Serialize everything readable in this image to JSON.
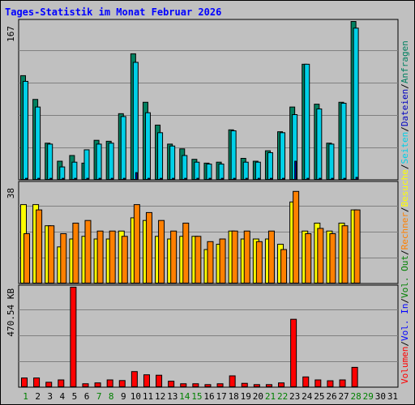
{
  "chart_data": {
    "type": "bar",
    "title": "Tages-Statistik im Monat Februar 2026",
    "days": [
      "1",
      "2",
      "3",
      "4",
      "5",
      "6",
      "7",
      "8",
      "9",
      "10",
      "11",
      "12",
      "13",
      "14",
      "15",
      "16",
      "17",
      "18",
      "19",
      "20",
      "21",
      "22",
      "23",
      "24",
      "25",
      "26",
      "27",
      "28",
      "29",
      "30",
      "31"
    ],
    "weekend_days": [
      "1",
      "7",
      "8",
      "14",
      "15",
      "21",
      "22",
      "28",
      "29"
    ],
    "panels": [
      {
        "id": "top",
        "ytick": "167",
        "ymax": 167,
        "series": [
          {
            "name": "Anfragen",
            "color": "#008060",
            "values": [
              110,
              85,
              39,
              20,
              26,
              18,
              42,
              41,
              70,
              133,
              82,
              58,
              38,
              33,
              22,
              18,
              19,
              53,
              23,
              20,
              31,
              51,
              77,
              122,
              80,
              39,
              82,
              167,
              null,
              null,
              null
            ]
          },
          {
            "name": "Seiten",
            "color": "#00D0E8",
            "values": [
              104,
              77,
              38,
              14,
              19,
              32,
              38,
              39,
              67,
              124,
              71,
              50,
              36,
              26,
              19,
              17,
              17,
              52,
              19,
              19,
              29,
              50,
              69,
              122,
              75,
              38,
              81,
              160,
              null,
              null,
              null
            ]
          },
          {
            "name": "Dateien",
            "color": "#0000C0",
            "values": [
              2,
              2,
              2,
              2,
              2,
              2,
              2,
              2,
              2,
              8,
              2,
              2,
              2,
              2,
              2,
              2,
              2,
              2,
              2,
              2,
              2,
              2,
              20,
              2,
              2,
              2,
              2,
              3,
              null,
              null,
              null
            ]
          }
        ]
      },
      {
        "id": "middle",
        "ytick": "38",
        "ymax": 38,
        "series": [
          {
            "name": "Besuche",
            "color": "#FFFF00",
            "values": [
              30,
              30,
              22,
              14,
              17,
              18,
              17,
              17,
              20,
              25,
              24,
              18,
              17,
              18,
              18,
              13,
              15,
              20,
              17,
              17,
              17,
              15,
              31,
              20,
              23,
              20,
              23,
              28,
              null,
              null,
              null
            ]
          },
          {
            "name": "Rechner",
            "color": "#FF8000",
            "values": [
              19,
              28,
              22,
              19,
              23,
              24,
              20,
              20,
              18,
              30,
              27,
              24,
              20,
              23,
              18,
              16,
              17,
              20,
              20,
              16,
              20,
              13,
              35,
              19,
              21,
              19,
              22,
              28,
              null,
              null,
              null
            ]
          }
        ]
      },
      {
        "id": "bottom",
        "ytick": "470.54 KB",
        "ymax": 470.54,
        "series": [
          {
            "name": "Vol. In",
            "color": "#0000FF",
            "values": []
          },
          {
            "name": "Vol. Out",
            "color": "#008000",
            "values": []
          },
          {
            "name": "Volumen",
            "color": "#FF0000",
            "values": [
              45,
              45,
              25,
              36,
              470.54,
              18,
              22,
              36,
              33,
              75,
              60,
              58,
              30,
              18,
              18,
              14,
              18,
              55,
              20,
              14,
              14,
              22,
              320,
              50,
              36,
              32,
              36,
              95,
              null,
              null,
              null
            ]
          }
        ]
      }
    ],
    "right_legend": [
      {
        "text": "Volumen",
        "color": "#FF0000"
      },
      {
        "text": "/",
        "color": "#000000"
      },
      {
        "text": "Vol. In",
        "color": "#0000FF"
      },
      {
        "text": "/",
        "color": "#000000"
      },
      {
        "text": "Vol. Out",
        "color": "#008000"
      },
      {
        "text": "/",
        "color": "#000000"
      },
      {
        "text": "Rechner",
        "color": "#FF8000"
      },
      {
        "text": "/",
        "color": "#000000"
      },
      {
        "text": "Besuche",
        "color": "#FFFF00"
      },
      {
        "text": "/",
        "color": "#000000"
      },
      {
        "text": "Seiten",
        "color": "#00D0E8"
      },
      {
        "text": "/",
        "color": "#000000"
      },
      {
        "text": "Dateien",
        "color": "#0000C0"
      },
      {
        "text": "/",
        "color": "#000000"
      },
      {
        "text": "Anfragen",
        "color": "#008060"
      }
    ],
    "colors": {
      "background": "#C0C0C0",
      "title": "#0000FF",
      "weekday_label": "#000000",
      "weekend_label": "#008000",
      "grid": "#808080"
    }
  }
}
